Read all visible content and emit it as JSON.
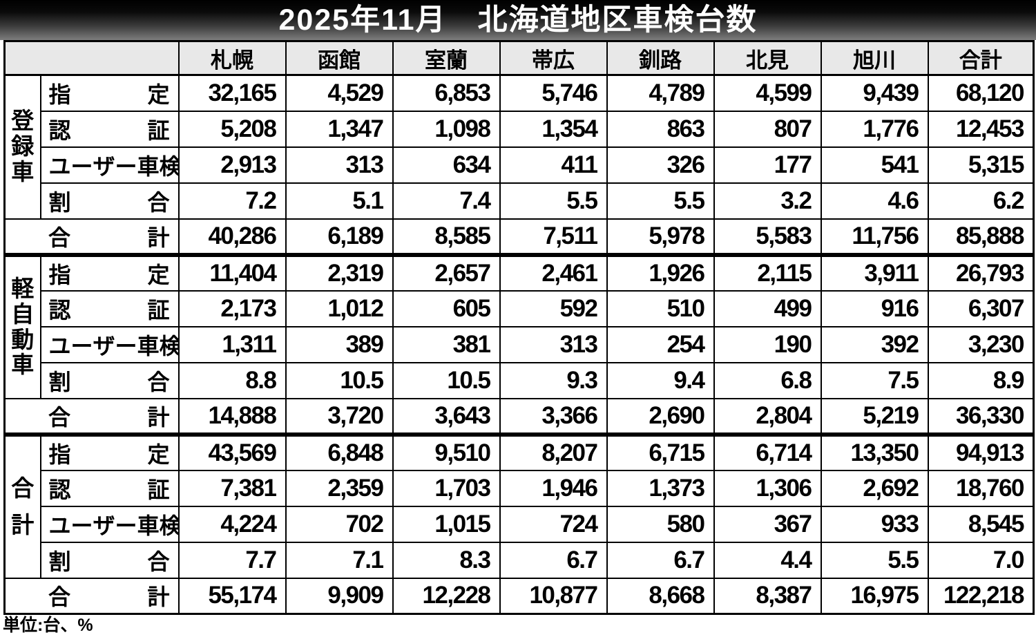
{
  "title": "2025年11月　北海道地区車検台数",
  "unit_note": "単位:台、%",
  "colors": {
    "title_gradient_top": "#000000",
    "title_gradient_bottom": "#7d7d7d",
    "title_text": "#ffffff",
    "header_background": "#e8e8e8",
    "border": "#000000",
    "body_text": "#000000"
  },
  "table": {
    "columns": [
      "札幌",
      "函館",
      "室蘭",
      "帯広",
      "釧路",
      "北見",
      "旭川",
      "合計"
    ],
    "sections": [
      {
        "group": "登録車",
        "rows": [
          {
            "label": "指定",
            "values": [
              "32,165",
              "4,529",
              "6,853",
              "5,746",
              "4,789",
              "4,599",
              "9,439",
              "68,120"
            ]
          },
          {
            "label": "認証",
            "values": [
              "5,208",
              "1,347",
              "1,098",
              "1,354",
              "863",
              "807",
              "1,776",
              "12,453"
            ]
          },
          {
            "label": "ユーザー車検",
            "values": [
              "2,913",
              "313",
              "634",
              "411",
              "326",
              "177",
              "541",
              "5,315"
            ]
          },
          {
            "label": "割合",
            "values": [
              "7.2",
              "5.1",
              "7.4",
              "5.5",
              "5.5",
              "3.2",
              "4.6",
              "6.2"
            ]
          }
        ],
        "total": {
          "label": "合計",
          "values": [
            "40,286",
            "6,189",
            "8,585",
            "7,511",
            "5,978",
            "5,583",
            "11,756",
            "85,888"
          ]
        }
      },
      {
        "group": "軽自動車",
        "rows": [
          {
            "label": "指定",
            "values": [
              "11,404",
              "2,319",
              "2,657",
              "2,461",
              "1,926",
              "2,115",
              "3,911",
              "26,793"
            ]
          },
          {
            "label": "認証",
            "values": [
              "2,173",
              "1,012",
              "605",
              "592",
              "510",
              "499",
              "916",
              "6,307"
            ]
          },
          {
            "label": "ユーザー車検",
            "values": [
              "1,311",
              "389",
              "381",
              "313",
              "254",
              "190",
              "392",
              "3,230"
            ]
          },
          {
            "label": "割合",
            "values": [
              "8.8",
              "10.5",
              "10.5",
              "9.3",
              "9.4",
              "6.8",
              "7.5",
              "8.9"
            ]
          }
        ],
        "total": {
          "label": "合計",
          "values": [
            "14,888",
            "3,720",
            "3,643",
            "3,366",
            "2,690",
            "2,804",
            "5,219",
            "36,330"
          ]
        }
      },
      {
        "group": "合計",
        "rows": [
          {
            "label": "指定",
            "values": [
              "43,569",
              "6,848",
              "9,510",
              "8,207",
              "6,715",
              "6,714",
              "13,350",
              "94,913"
            ]
          },
          {
            "label": "認証",
            "values": [
              "7,381",
              "2,359",
              "1,703",
              "1,946",
              "1,373",
              "1,306",
              "2,692",
              "18,760"
            ]
          },
          {
            "label": "ユーザー車検",
            "values": [
              "4,224",
              "702",
              "1,015",
              "724",
              "580",
              "367",
              "933",
              "8,545"
            ]
          },
          {
            "label": "割合",
            "values": [
              "7.7",
              "7.1",
              "8.3",
              "6.7",
              "6.7",
              "4.4",
              "5.5",
              "7.0"
            ]
          }
        ],
        "total": {
          "label": "合計",
          "values": [
            "55,174",
            "9,909",
            "12,228",
            "10,877",
            "8,668",
            "8,387",
            "16,975",
            "122,218"
          ]
        }
      }
    ]
  }
}
